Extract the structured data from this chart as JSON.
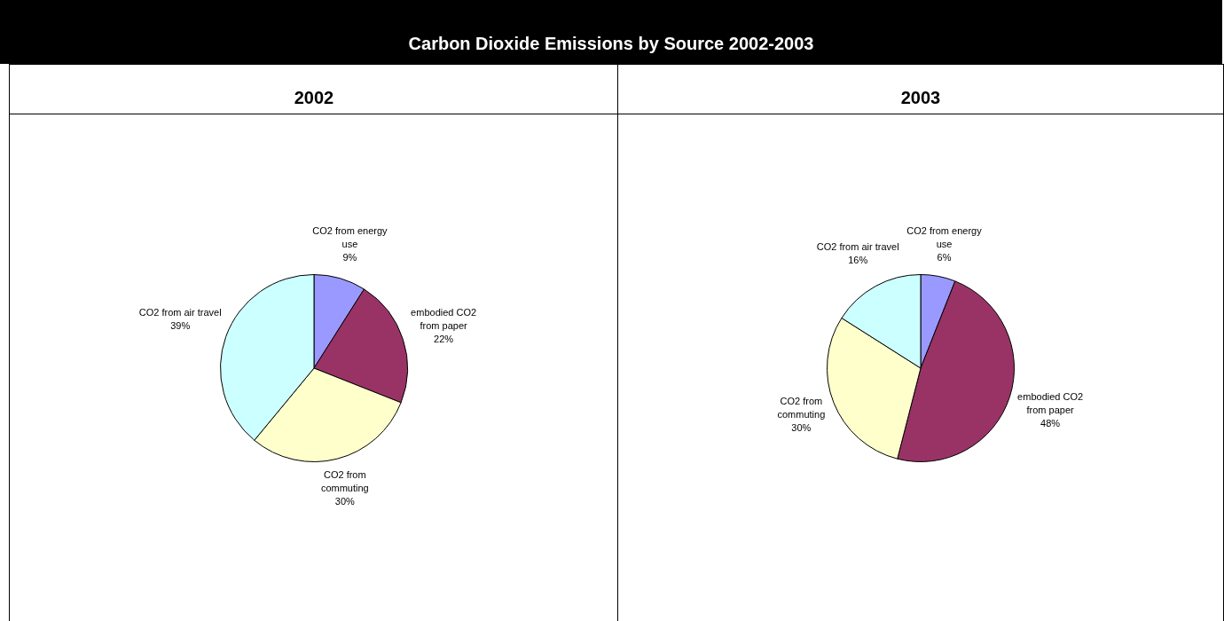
{
  "chart_data": [
    {
      "type": "pie",
      "title": "Carbon Dioxide Emissions by Source 2002-2003",
      "subtitle": "2002",
      "categories": [
        "CO2 from energy use",
        "embodied CO2 from paper",
        "CO2 from commuting",
        "CO2 from air travel"
      ],
      "values": [
        9,
        22,
        30,
        39
      ],
      "colors": [
        "#9999ff",
        "#993366",
        "#ffffcc",
        "#ccffff"
      ],
      "value_labels": [
        "9%",
        "22%",
        "30%",
        "39%"
      ],
      "legend": false
    },
    {
      "type": "pie",
      "subtitle": "2003",
      "categories": [
        "CO2 from energy use",
        "embodied CO2 from paper",
        "CO2 from commuting",
        "CO2 from air travel"
      ],
      "values": [
        6,
        48,
        30,
        16
      ],
      "colors": [
        "#9999ff",
        "#993366",
        "#ffffcc",
        "#ccffff"
      ],
      "value_labels": [
        "6%",
        "48%",
        "30%",
        "16%"
      ],
      "legend": false
    }
  ]
}
